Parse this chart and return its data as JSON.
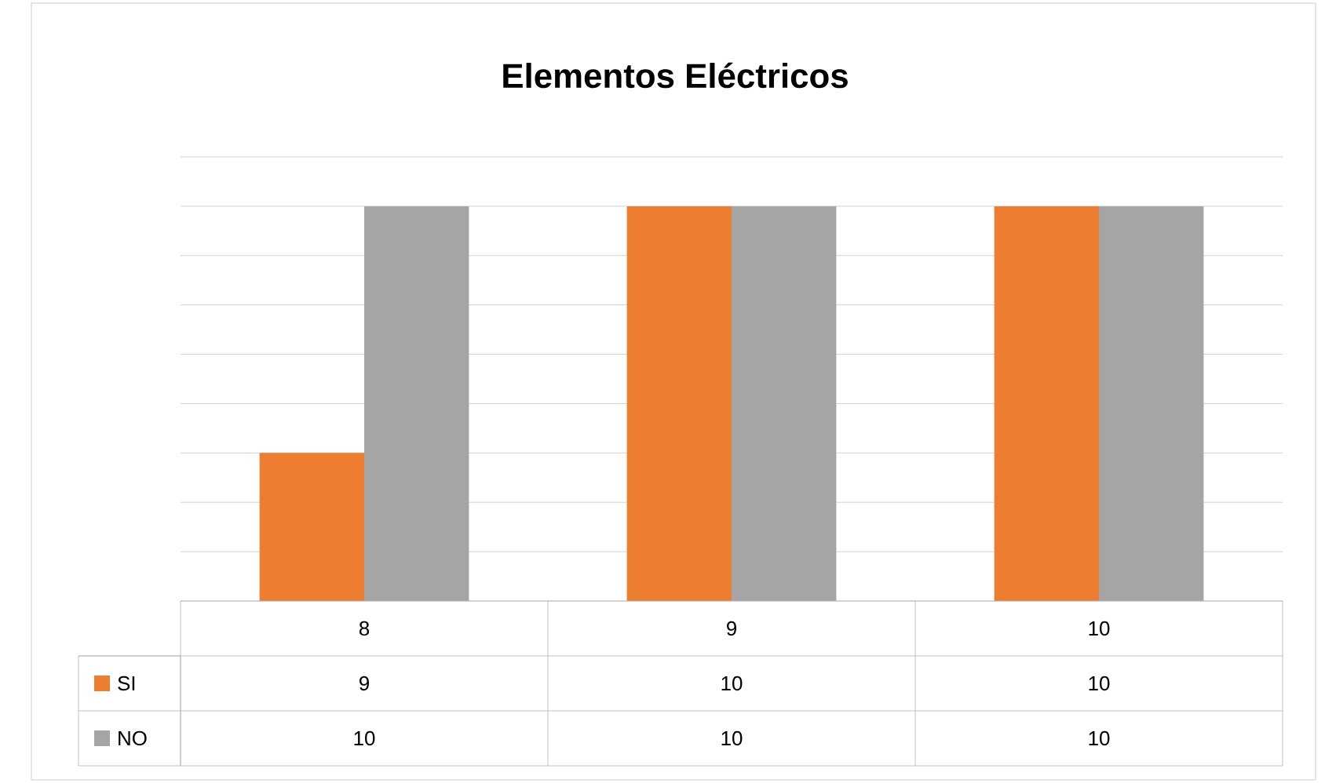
{
  "chart_data": {
    "type": "bar",
    "title": "Elementos Eléctricos",
    "categories": [
      "8",
      "9",
      "10"
    ],
    "series": [
      {
        "name": "SI",
        "color": "#ed7d31",
        "values": [
          9,
          10,
          10
        ]
      },
      {
        "name": "NO",
        "color": "#a5a5a5",
        "values": [
          10,
          10,
          10
        ]
      }
    ],
    "ylim": [
      8.4,
      10.2
    ],
    "yticks": [
      {
        "value": 8.4,
        "label": null
      },
      {
        "value": 8.6,
        "label": null
      },
      {
        "value": 8.8,
        "label": null
      },
      {
        "value": 9.0,
        "label": null
      },
      {
        "value": 9.2,
        "label": null
      },
      {
        "value": 9.4,
        "label": null
      },
      {
        "value": 9.6,
        "label": null
      },
      {
        "value": 9.8,
        "label": null
      },
      {
        "value": 10.0,
        "label": null
      },
      {
        "value": 10.2,
        "label": null
      }
    ],
    "grid": "y",
    "tick_labels": "x",
    "legend": "bottom",
    "data_labels": true
  }
}
